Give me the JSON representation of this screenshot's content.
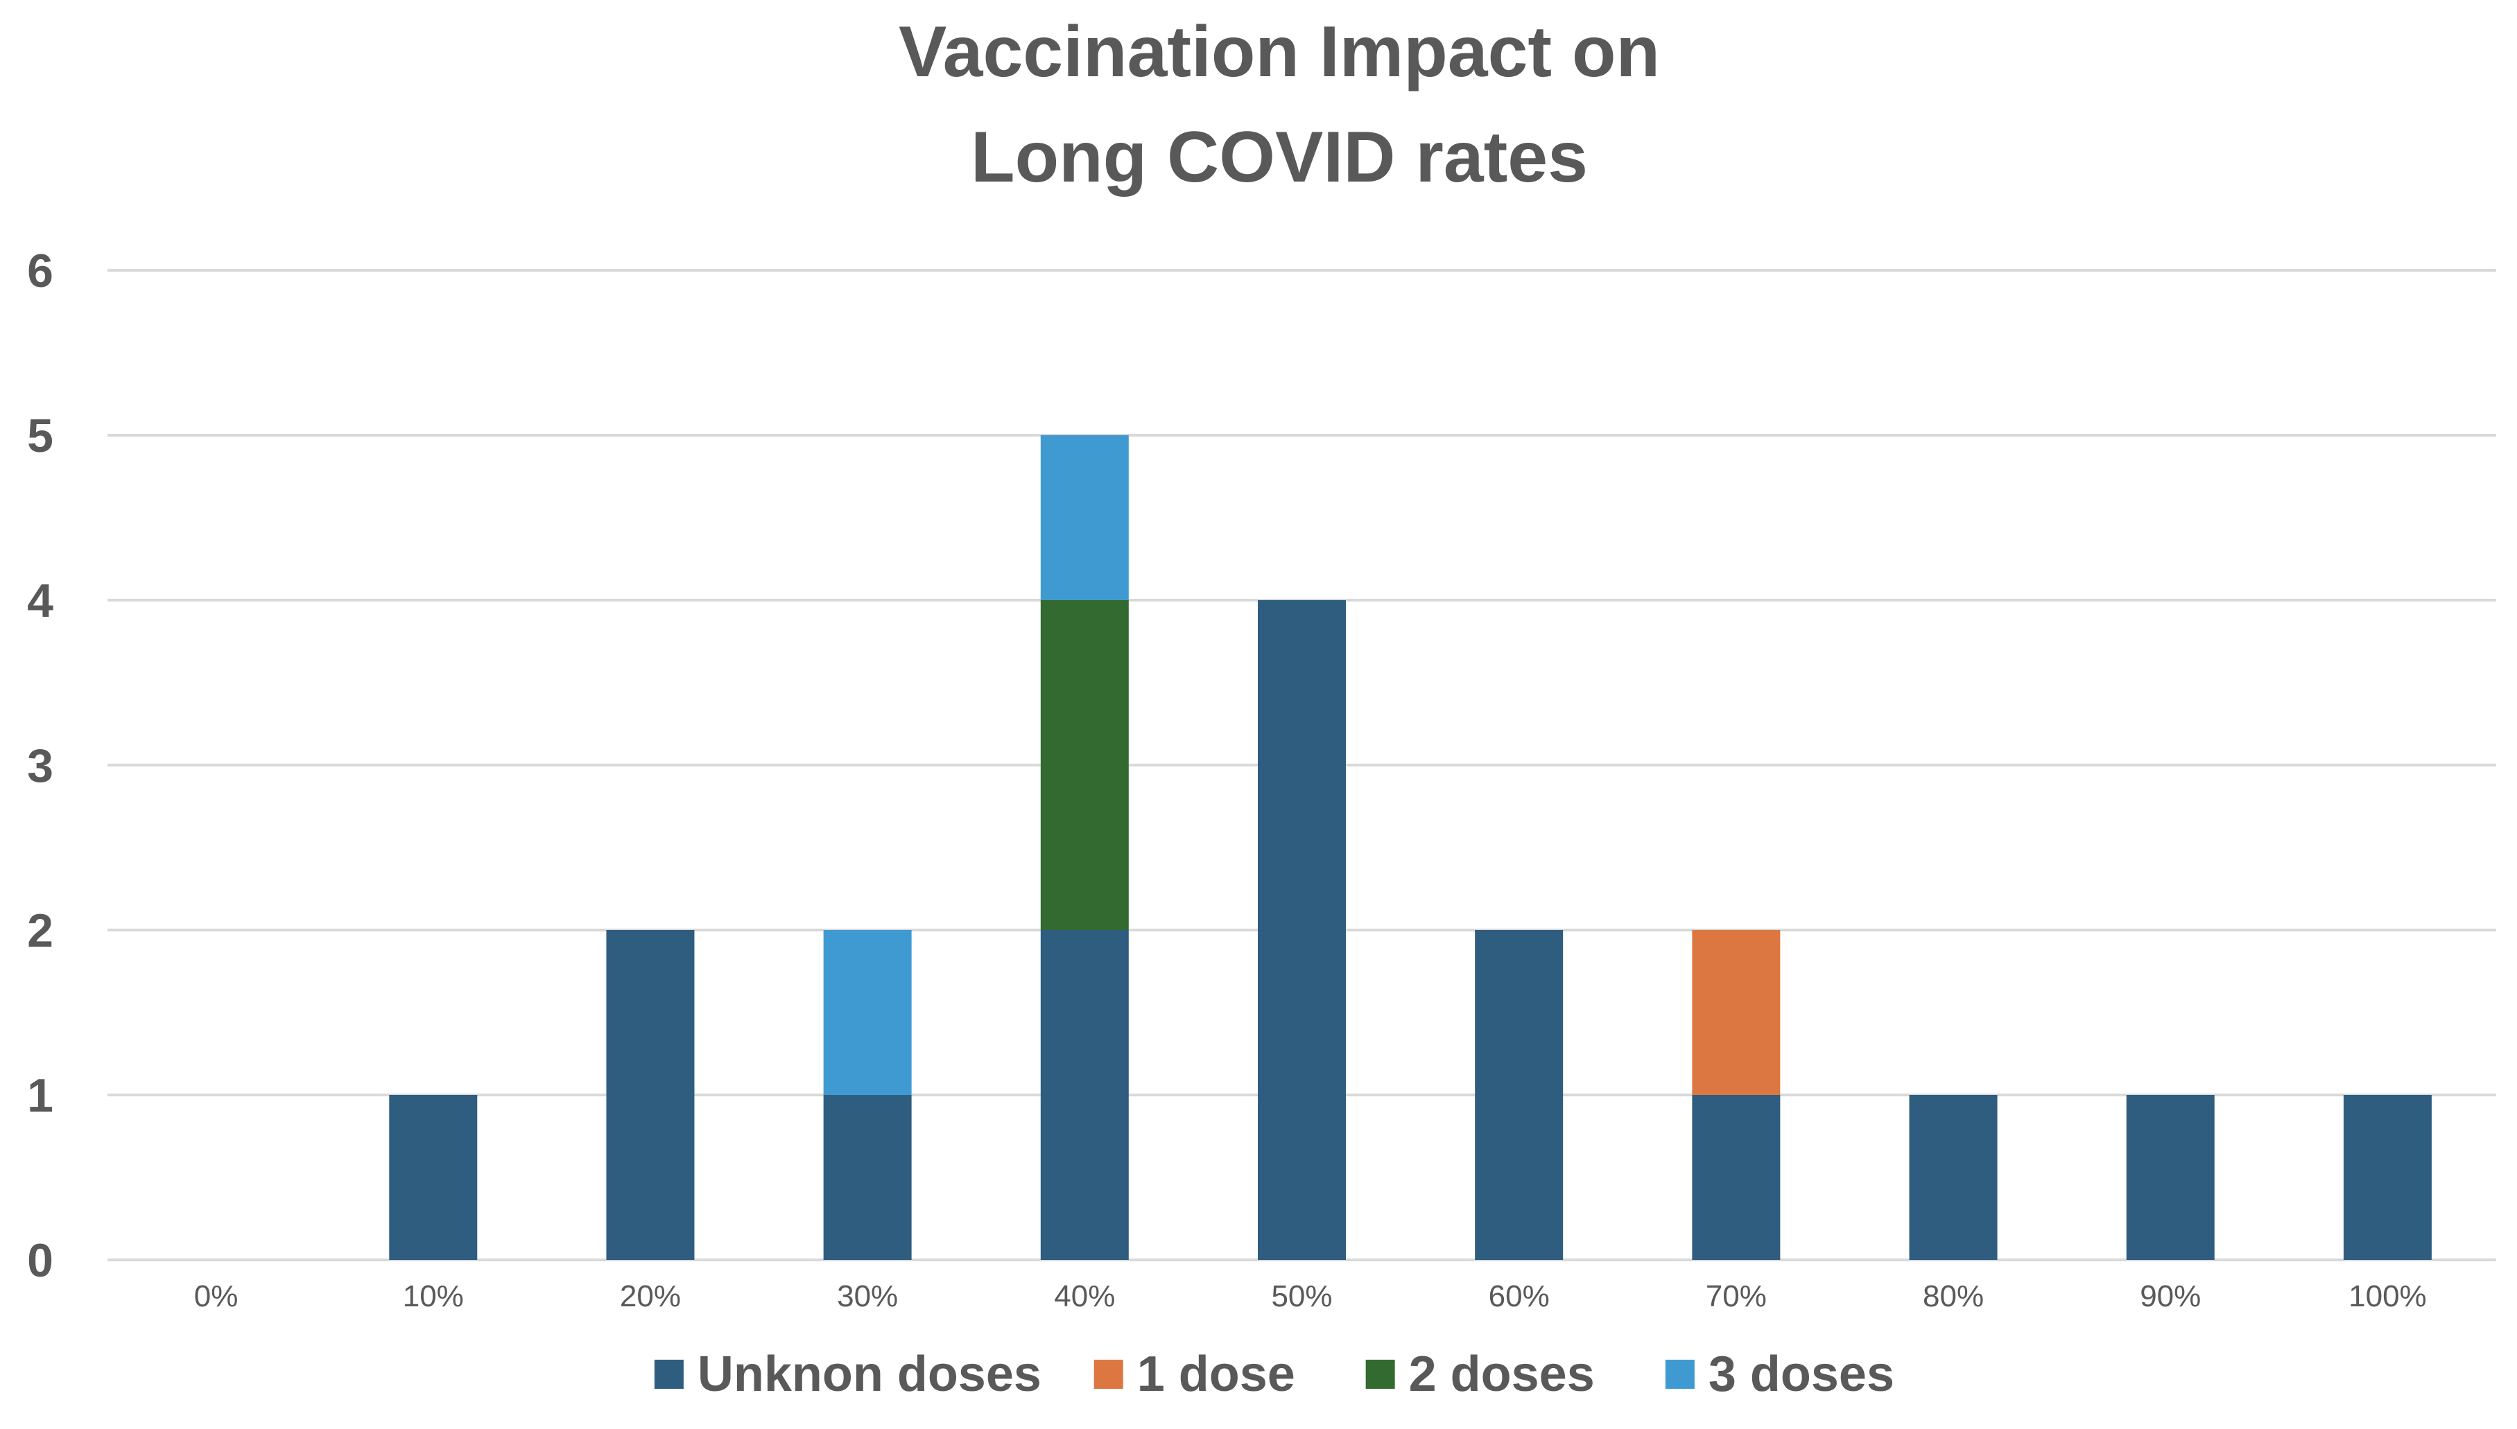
{
  "chart_data": {
    "type": "bar",
    "stacked": true,
    "title": [
      "Vaccination Impact on",
      "Long COVID rates"
    ],
    "categories": [
      "0%",
      "10%",
      "20%",
      "30%",
      "40%",
      "50%",
      "60%",
      "70%",
      "80%",
      "90%",
      "100%"
    ],
    "series": [
      {
        "name": "Unknon doses",
        "color": "#2e5d80",
        "values": [
          0,
          1,
          2,
          1,
          2,
          4,
          2,
          1,
          1,
          1,
          1
        ]
      },
      {
        "name": "1 dose",
        "color": "#dc7741",
        "values": [
          0,
          0,
          0,
          0,
          0,
          0,
          0,
          1,
          0,
          0,
          0
        ]
      },
      {
        "name": "2 doses",
        "color": "#336a30",
        "values": [
          0,
          0,
          0,
          0,
          2,
          0,
          0,
          0,
          0,
          0,
          0
        ]
      },
      {
        "name": "3 doses",
        "color": "#409ad2",
        "values": [
          0,
          0,
          0,
          1,
          1,
          0,
          0,
          0,
          0,
          0,
          0
        ]
      }
    ],
    "ylim": [
      0,
      6
    ],
    "yticks": [
      0,
      1,
      2,
      3,
      4,
      5,
      6
    ],
    "grid": true,
    "legend_position": "bottom",
    "colors": {
      "grid": "#d9d9d9",
      "text": "#595959",
      "axis": "#d9d9d9"
    }
  }
}
